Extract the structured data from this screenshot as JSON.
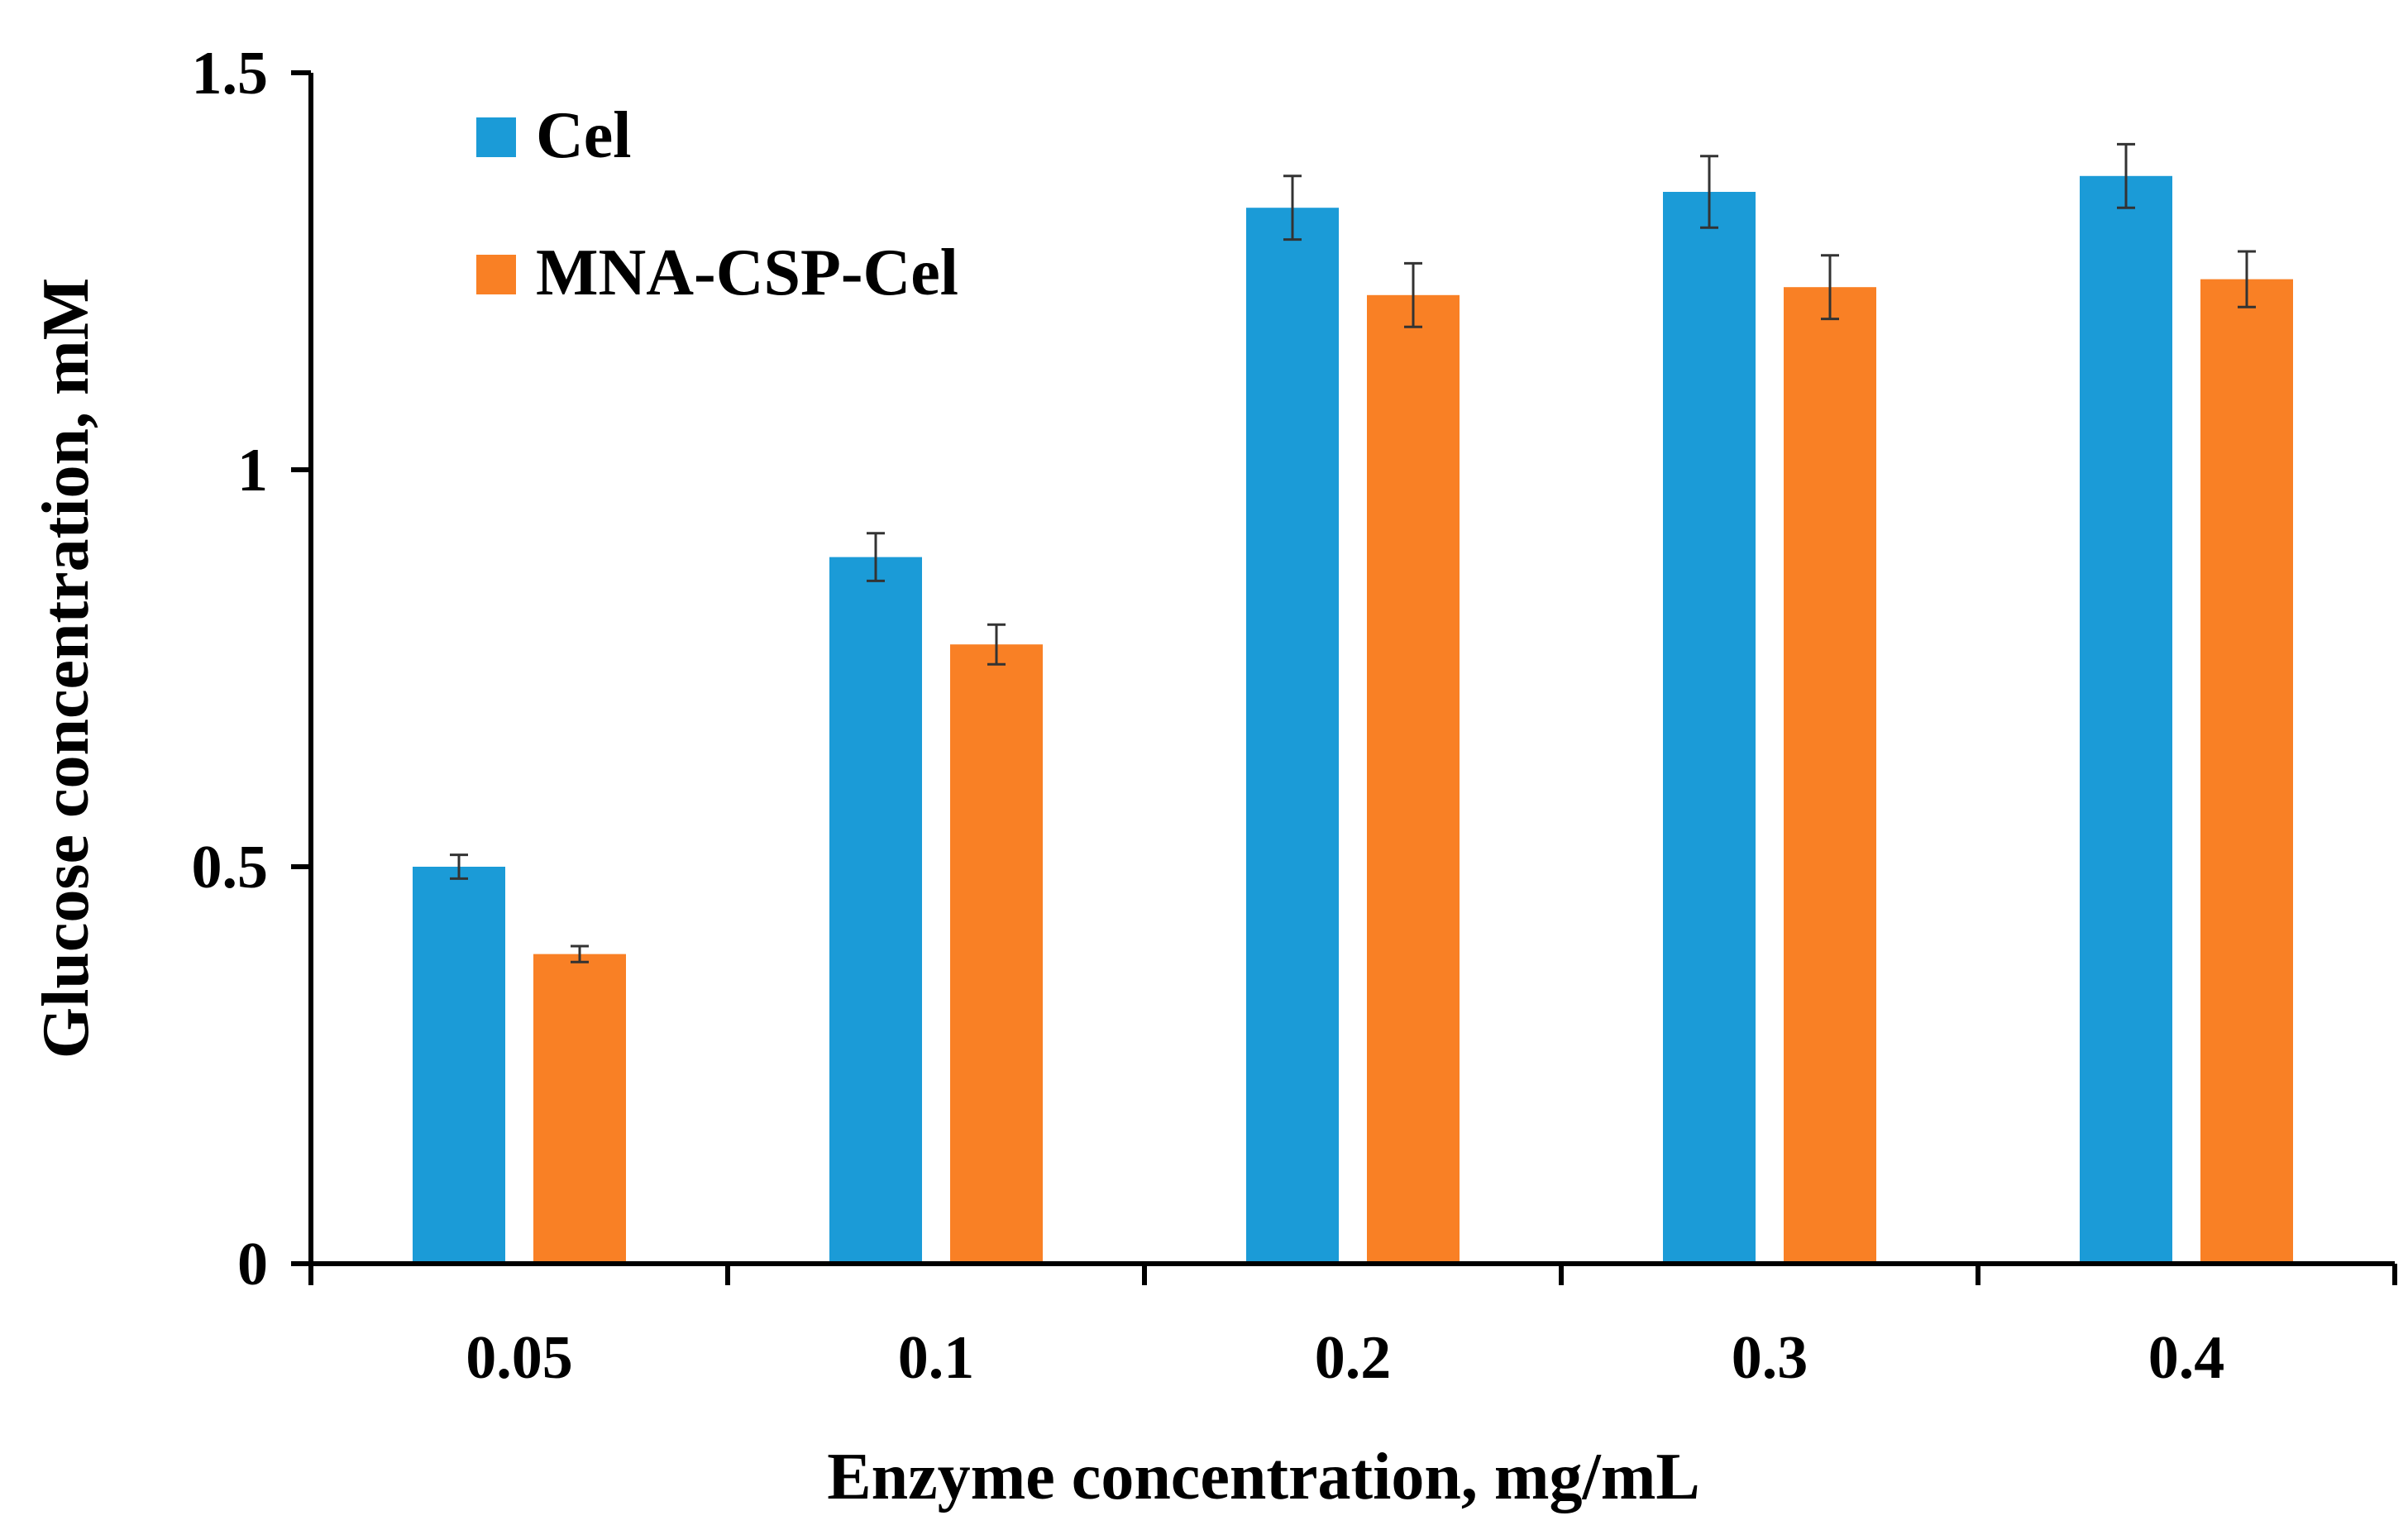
{
  "chart_data": {
    "type": "bar",
    "title": "",
    "xlabel": "Enzyme concentration, mg/mL",
    "ylabel": "Glucose concentration, mM",
    "categories": [
      "0.05",
      "0.1",
      "0.2",
      "0.3",
      "0.4"
    ],
    "ylim": [
      0,
      1.5
    ],
    "yticks": [
      {
        "value": 0,
        "label": "0"
      },
      {
        "value": 0.5,
        "label": "0.5"
      },
      {
        "value": 1,
        "label": "1"
      },
      {
        "value": 1.5,
        "label": "1.5"
      }
    ],
    "grid": false,
    "legend_position": "top-left",
    "series": [
      {
        "name": "Cel",
        "color": "#1b9bd7",
        "values": [
          0.5,
          0.89,
          1.33,
          1.35,
          1.37
        ],
        "errors": [
          0.015,
          0.03,
          0.04,
          0.045,
          0.04
        ]
      },
      {
        "name": "MNA-CSP-Cel",
        "color": "#f98025",
        "values": [
          0.39,
          0.78,
          1.22,
          1.23,
          1.24
        ],
        "errors": [
          0.01,
          0.025,
          0.04,
          0.04,
          0.035
        ]
      }
    ]
  }
}
